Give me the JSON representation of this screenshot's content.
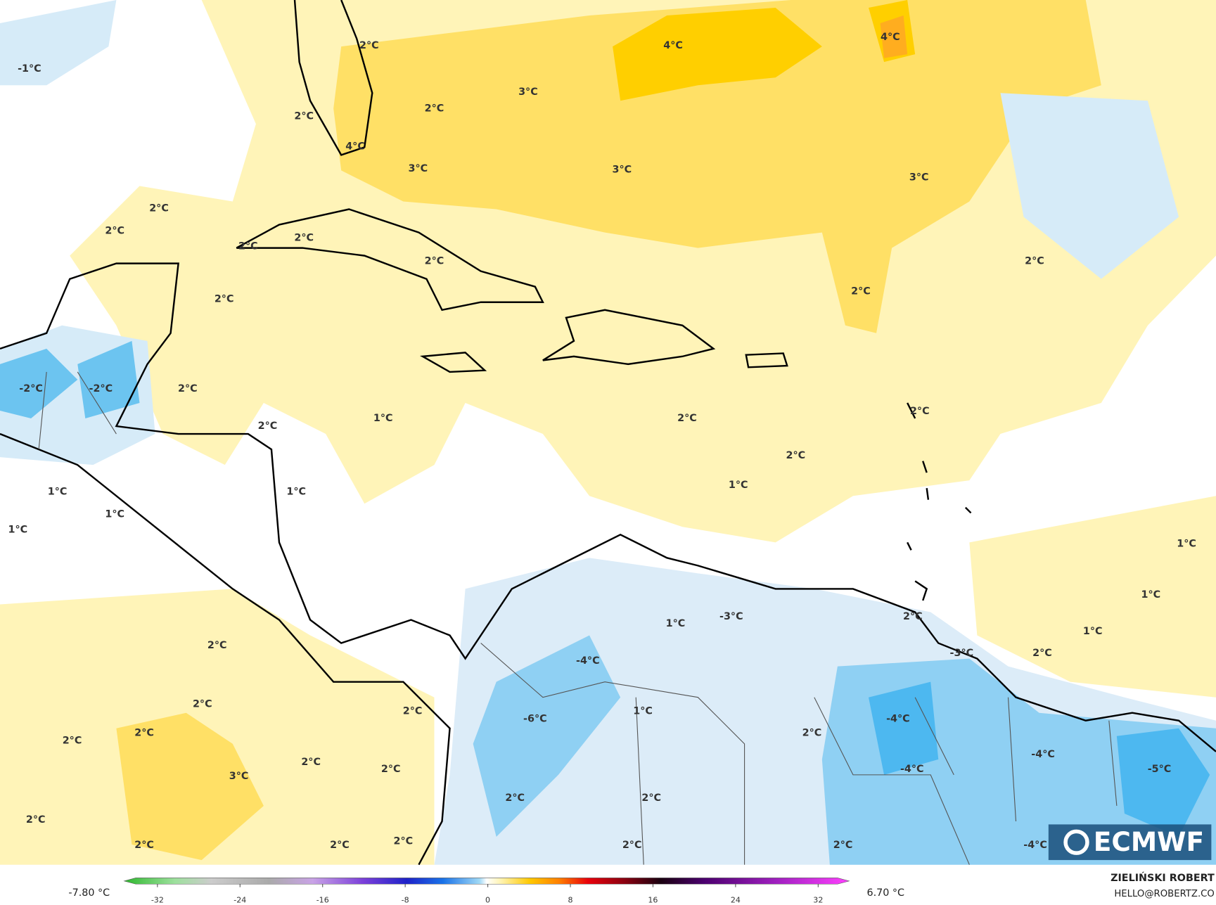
{
  "map": {
    "labels": [
      "-1°C",
      "2°C",
      "2°C",
      "2°C",
      "4°C",
      "3°C",
      "4°C",
      "4°C",
      "3°C",
      "3°C",
      "3°C",
      "2°C",
      "2°C",
      "2°C",
      "2°C",
      "2°C",
      "2°C",
      "2°C",
      "2°C",
      "-2°C",
      "-2°C",
      "2°C",
      "2°C",
      "1°C",
      "2°C",
      "2°C",
      "2°C",
      "1°C",
      "1°C",
      "1°C",
      "1°C",
      "1°C",
      "1°C",
      "1°C",
      "1°C",
      "2°C",
      "2°C",
      "1°C",
      "-3°C",
      "2°C",
      "-3°C",
      "-4°C",
      "2°C",
      "2°C",
      "1°C",
      "-6°C",
      "2°C",
      "-4°C",
      "2°C",
      "2°C",
      "2°C",
      "3°C",
      "2°C",
      "-4°C",
      "-4°C",
      "-5°C",
      "2°C",
      "2°C",
      "2°C",
      "2°C",
      "2°C",
      "2°C",
      "2°C",
      "2°C",
      "-4°C"
    ],
    "logo": "ECMWF"
  },
  "colorbar": {
    "min_label": "-7.80 °C",
    "max_label": "6.70 °C",
    "ticks": [
      -32,
      -24,
      -16,
      -8,
      0,
      8,
      16,
      24,
      32
    ]
  },
  "credits": {
    "author": "ZIELIŃSKI ROBERT",
    "contact": "HELLO@ROBERTZ.CO"
  }
}
